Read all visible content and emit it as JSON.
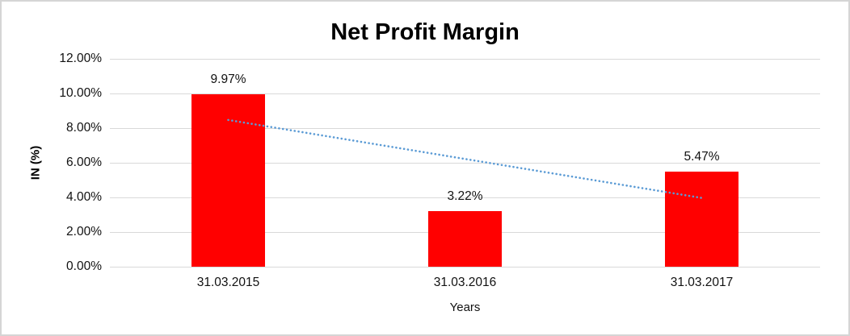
{
  "chart_data": {
    "type": "bar",
    "title": "Net Profit Margin",
    "xlabel": "Years",
    "ylabel": "IN (%)",
    "categories": [
      "31.03.2015",
      "31.03.2016",
      "31.03.2017"
    ],
    "values": [
      9.97,
      3.22,
      5.47
    ],
    "value_labels": [
      "9.97%",
      "3.22%",
      "5.47%"
    ],
    "ylim": [
      0,
      12
    ],
    "ytick_step": 2,
    "ytick_labels": [
      "0.00%",
      "2.00%",
      "4.00%",
      "6.00%",
      "8.00%",
      "10.00%",
      "12.00%"
    ],
    "grid": true,
    "legend": "none",
    "colors": {
      "bar": "#FF0000",
      "trendline": "#5B9BD5",
      "gridline": "#D9D9D9",
      "frame_border": "#D5D5D5",
      "text": "#000000"
    },
    "trendline": {
      "type": "linear",
      "style": "dotted",
      "start_value": 8.47,
      "end_value": 3.97
    }
  }
}
